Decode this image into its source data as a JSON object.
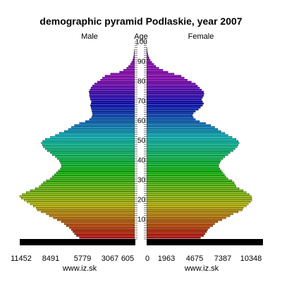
{
  "chart_data": {
    "type": "bar",
    "title": "demographic pyramid Podlaskie, year 2007",
    "left_label": "Male",
    "center_label": "Age",
    "right_label": "Female",
    "x_ticks_left": [
      "11452",
      "8491",
      "5779",
      "3067",
      "605"
    ],
    "x_ticks_right": [
      "0",
      "1963",
      "4675",
      "7387",
      "10348"
    ],
    "age_ticks": [
      "10",
      "20",
      "30",
      "40",
      "50",
      "60",
      "70",
      "80",
      "90",
      "100"
    ],
    "footer_left": "www.iz.sk",
    "footer_right": "www.iz.sk",
    "xlim": [
      0,
      11452
    ],
    "age_range": [
      0,
      100
    ],
    "grid": false,
    "series": [
      {
        "name": "Male",
        "values": [
          5500,
          5800,
          6000,
          6150,
          6300,
          6500,
          6800,
          7000,
          7300,
          7700,
          8100,
          8500,
          8800,
          9300,
          9700,
          9800,
          10100,
          10400,
          10700,
          11000,
          11300,
          11452,
          11200,
          10800,
          10400,
          9900,
          9500,
          9300,
          9100,
          8800,
          8400,
          8200,
          8000,
          7800,
          7600,
          7400,
          7300,
          7300,
          7400,
          7500,
          7700,
          7900,
          8200,
          8400,
          8700,
          8900,
          9100,
          9200,
          9300,
          9150,
          8900,
          8400,
          7900,
          7500,
          7000,
          6600,
          6300,
          6000,
          5500,
          4900,
          4500,
          4300,
          4200,
          4200,
          4250,
          4300,
          4350,
          4400,
          4350,
          4300,
          4400,
          4450,
          4500,
          4500,
          4550,
          4450,
          4350,
          4200,
          4000,
          3700,
          3400,
          3200,
          2950,
          2400,
          1500,
          1100,
          800,
          600,
          420,
          300,
          200,
          140,
          90,
          60,
          40,
          25,
          15,
          10,
          5,
          3
        ]
      },
      {
        "name": "Female",
        "values": [
          5300,
          5600,
          5750,
          5900,
          6000,
          6200,
          6500,
          6700,
          7000,
          7400,
          7800,
          8200,
          8500,
          9000,
          9400,
          9500,
          9800,
          10000,
          10200,
          10350,
          10348,
          10300,
          10100,
          9800,
          9500,
          9100,
          8800,
          8700,
          8600,
          8400,
          8000,
          7800,
          7650,
          7500,
          7350,
          7200,
          7100,
          7100,
          7200,
          7300,
          7500,
          7700,
          8000,
          8200,
          8500,
          8700,
          8900,
          9000,
          9100,
          9000,
          8800,
          8400,
          8000,
          7700,
          7300,
          7000,
          6700,
          6300,
          5800,
          5200,
          4800,
          4600,
          4500,
          4600,
          4800,
          5100,
          5300,
          5500,
          5600,
          5500,
          5400,
          5500,
          5600,
          5650,
          5600,
          5400,
          5200,
          5000,
          4800,
          4400,
          4000,
          3700,
          3400,
          2700,
          2100,
          1600,
          1200,
          900,
          700,
          500,
          350,
          250,
          170,
          110,
          70,
          45,
          28,
          16,
          9,
          5
        ]
      }
    ]
  }
}
